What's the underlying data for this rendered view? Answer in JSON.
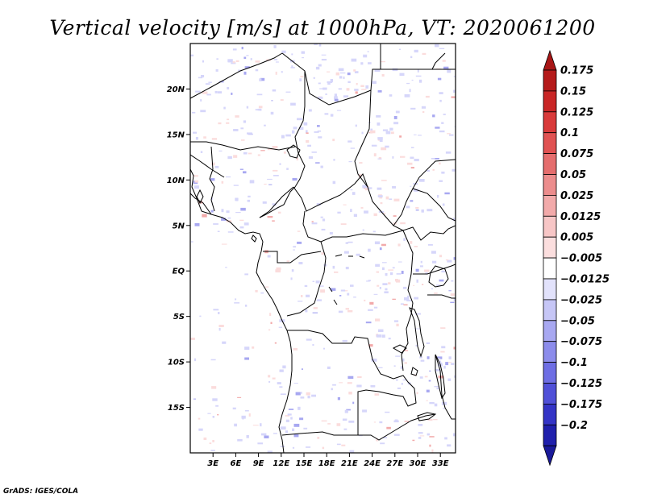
{
  "title": "Vertical velocity [m/s] at 1000hPa, VT: 2020061200",
  "credit": "GrADS: IGES/COLA",
  "map": {
    "lon_range": [
      0,
      35
    ],
    "lat_range": [
      -20,
      25
    ],
    "lat_ticks": [
      {
        "label": "20N",
        "value": 20
      },
      {
        "label": "15N",
        "value": 15
      },
      {
        "label": "10N",
        "value": 10
      },
      {
        "label": "5N",
        "value": 5
      },
      {
        "label": "EQ",
        "value": 0
      },
      {
        "label": "5S",
        "value": -5
      },
      {
        "label": "10S",
        "value": -10
      },
      {
        "label": "15S",
        "value": -15
      }
    ],
    "lon_ticks": [
      {
        "label": "3E",
        "value": 3
      },
      {
        "label": "6E",
        "value": 6
      },
      {
        "label": "9E",
        "value": 9
      },
      {
        "label": "12E",
        "value": 12
      },
      {
        "label": "15E",
        "value": 15
      },
      {
        "label": "18E",
        "value": 18
      },
      {
        "label": "21E",
        "value": 21
      },
      {
        "label": "24E",
        "value": 24
      },
      {
        "label": "27E",
        "value": 27
      },
      {
        "label": "30E",
        "value": 30
      },
      {
        "label": "33E",
        "value": 33
      }
    ]
  },
  "colorbar": [
    {
      "label": "0.175",
      "color": "#b51a1a"
    },
    {
      "label": "0.15",
      "color": "#c92626"
    },
    {
      "label": "0.125",
      "color": "#d93a3a"
    },
    {
      "label": "0.1",
      "color": "#e05252"
    },
    {
      "label": "0.075",
      "color": "#e56e6e"
    },
    {
      "label": "0.05",
      "color": "#ec8d8d"
    },
    {
      "label": "0.025",
      "color": "#f2aaaa"
    },
    {
      "label": "0.0125",
      "color": "#f7c6c6"
    },
    {
      "label": "0.005",
      "color": "#fbdede"
    },
    {
      "label": "−0.005",
      "color": "#ffffff"
    },
    {
      "label": "−0.0125",
      "color": "#e2e2fb"
    },
    {
      "label": "−0.025",
      "color": "#c6c6f6"
    },
    {
      "label": "−0.05",
      "color": "#a8a8f1"
    },
    {
      "label": "−0.075",
      "color": "#8c8ceb"
    },
    {
      "label": "−0.1",
      "color": "#6e6ee4"
    },
    {
      "label": "−0.125",
      "color": "#5050d8"
    },
    {
      "label": "−0.175",
      "color": "#3434c6"
    },
    {
      "label": "−0.2",
      "color": "#2020ac"
    }
  ],
  "colorbar_ends": {
    "top": "#a81616",
    "bottom": "#1a1a9a"
  }
}
